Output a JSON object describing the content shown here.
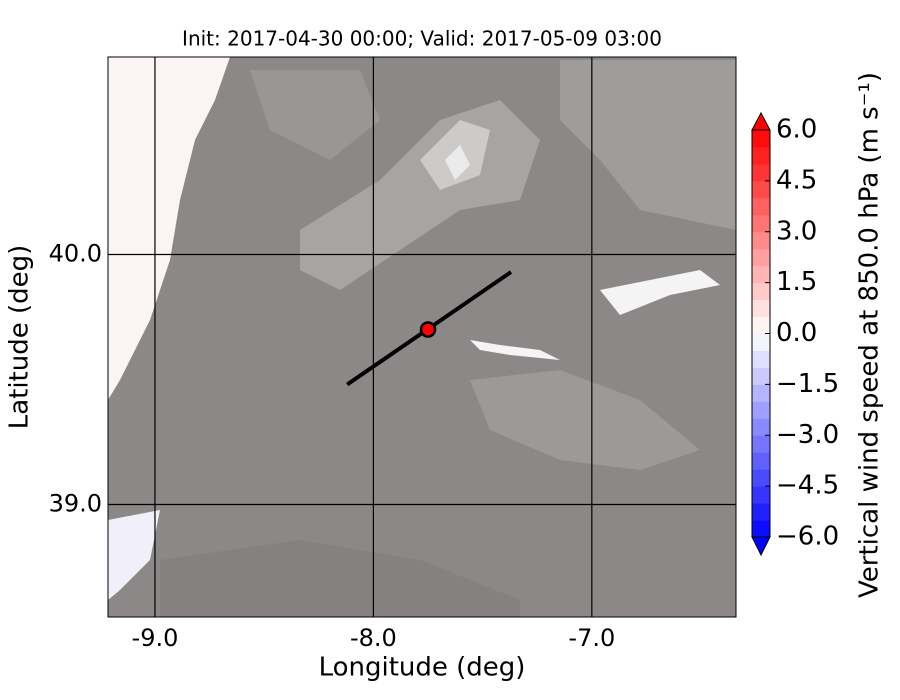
{
  "chart_data": {
    "type": "map",
    "title": "Init: 2017-04-30 00:00; Valid: 2017-05-09 03:00",
    "xlabel": "Longitude (deg)",
    "ylabel": "Latitude (deg)",
    "xlim": [
      -9.215,
      -6.34
    ],
    "ylim": [
      38.55,
      40.79
    ],
    "xticks": [
      {
        "value": -9,
        "label": "-9.0"
      },
      {
        "value": -8,
        "label": "-8.0"
      },
      {
        "value": -7,
        "label": "-7.0"
      }
    ],
    "yticks": [
      {
        "value": 39,
        "label": "39.0"
      },
      {
        "value": 40,
        "label": "40.0"
      }
    ],
    "grid": true,
    "transect": {
      "x": [
        -8.12,
        -7.37
      ],
      "y": [
        39.48,
        39.93
      ],
      "color": "#000000"
    },
    "point": {
      "x": -7.75,
      "y": 39.7,
      "color": "#ff0000"
    },
    "colorbar": {
      "label": "Vertical wind speed at 850.0 hPa (m s⁻¹)",
      "clim": [
        -6,
        6
      ],
      "step": 0.5,
      "colors": [
        "#0000ff",
        "#ffffff",
        "#ff0000"
      ],
      "ticks": [
        {
          "value": 6,
          "label": "6.0"
        },
        {
          "value": 4.5,
          "label": "4.5"
        },
        {
          "value": 3,
          "label": "3.0"
        },
        {
          "value": 1.5,
          "label": "1.5"
        },
        {
          "value": 0,
          "label": "0.0"
        },
        {
          "value": -1.5,
          "label": "−1.5"
        },
        {
          "value": -3,
          "label": "−3.0"
        },
        {
          "value": -4.5,
          "label": "−4.5"
        },
        {
          "value": -6,
          "label": "−6.0"
        }
      ]
    }
  }
}
